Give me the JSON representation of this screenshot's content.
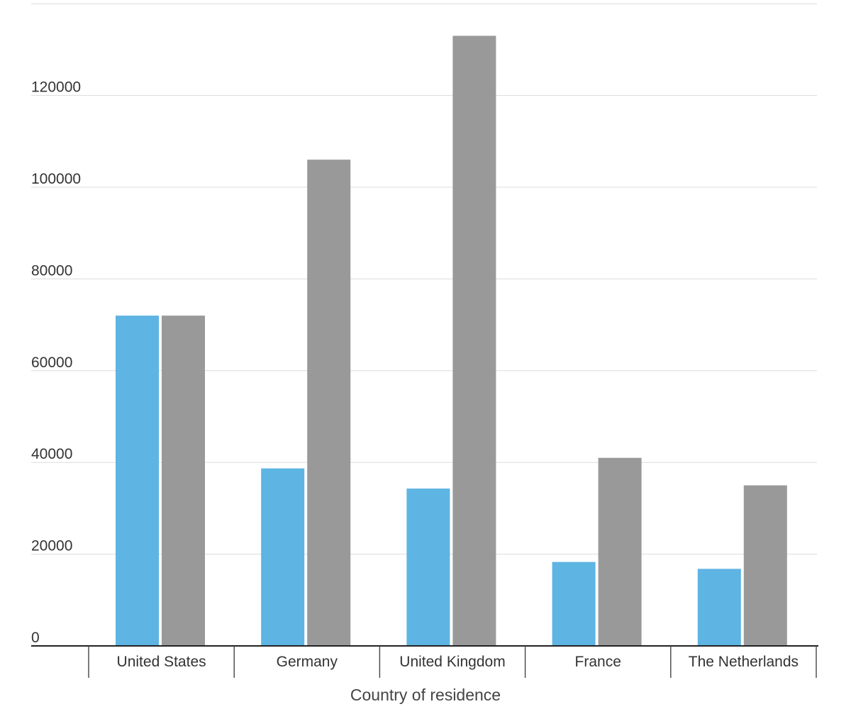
{
  "chart_data": {
    "type": "bar",
    "title": "",
    "xlabel": "Country of residence",
    "ylabel": "",
    "categories": [
      "United States",
      "Germany",
      "United Kingdom",
      "France",
      "The Netherlands"
    ],
    "series": [
      {
        "color": "#5eb4e3",
        "values": [
          72000,
          38700,
          34300,
          18300,
          16800
        ]
      },
      {
        "color": "#999999",
        "values": [
          72000,
          106000,
          133000,
          41000,
          35000
        ]
      }
    ],
    "ylim": [
      0,
      140000
    ],
    "yticks": [
      0,
      20000,
      40000,
      60000,
      80000,
      100000,
      120000
    ],
    "ytick_labels": [
      "0",
      "20000",
      "40000",
      "60000",
      "80000",
      "100000",
      "120000"
    ],
    "grid": true,
    "legend": "none"
  }
}
